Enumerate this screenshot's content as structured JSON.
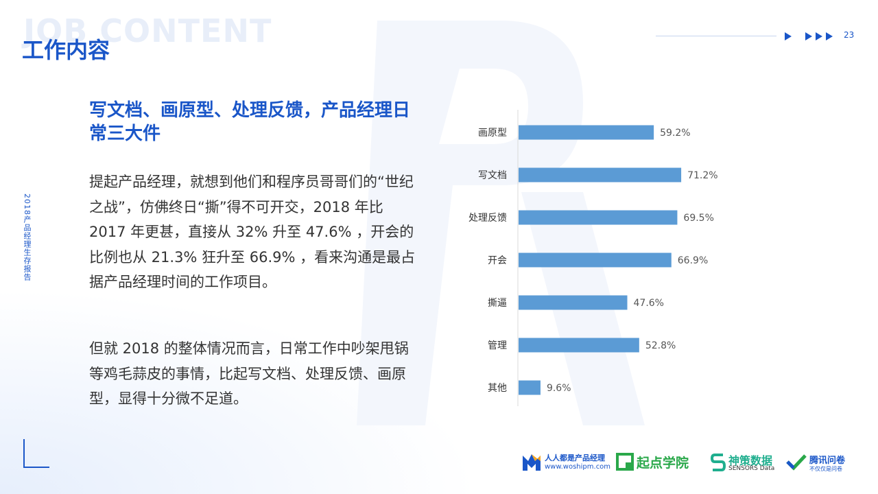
{
  "header": {
    "title": "工作内容",
    "bg_text": "JOB CONTENT",
    "page_number": "23"
  },
  "side_label": "2018产品经理生存报告",
  "headline": "写文档、画原型、处理反馈，产品经理日常三大件",
  "paragraphs": [
    "提起产品经理，就想到他们和程序员哥哥们的“世纪之战”，仿佛终日“撕”得不可开交，2018 年比 2017 年更甚，直接从  32% 升至 47.6% ，开会的比例也从 21.3% 狂升至 66.9% ，看来沟通是最占据产品经理时间的工作项目。",
    "但就 2018 的整体情况而言，日常工作中吵架甩锅等鸡毛蒜皮的事情，比起写文档、处理反馈、画原型，显得十分微不足道。"
  ],
  "chart_data": {
    "type": "bar",
    "orientation": "horizontal",
    "categories": [
      "画原型",
      "写文档",
      "处理反馈",
      "开会",
      "撕逼",
      "管理",
      "其他"
    ],
    "values": [
      59.2,
      71.2,
      69.5,
      66.9,
      47.6,
      52.8,
      9.6
    ],
    "value_labels": [
      "59.2%",
      "71.2%",
      "69.5%",
      "66.9%",
      "47.6%",
      "52.8%",
      "9.6%"
    ],
    "unit": "%",
    "xlim": [
      0,
      100
    ],
    "grid": false,
    "bar_color": "#5b9bd5"
  },
  "logos": [
    {
      "icon": "woshipm-logo",
      "name": "人人都是产品经理",
      "sub": "www.woshipm.com",
      "color": "#1a56c8"
    },
    {
      "icon": "qidian-logo",
      "name": "起点学院",
      "color": "#2aa84a"
    },
    {
      "icon": "sensors-logo",
      "name": "神策数据",
      "sub": "SENSORS Data",
      "color": "#1fae8e"
    },
    {
      "icon": "tencent-wj-logo",
      "name": "腾讯问卷",
      "sub": "不仅仅是问卷",
      "color": "#1a56c8"
    }
  ],
  "colors": {
    "accent": "#1a56c8",
    "text": "#333333",
    "bar": "#5b9bd5"
  }
}
